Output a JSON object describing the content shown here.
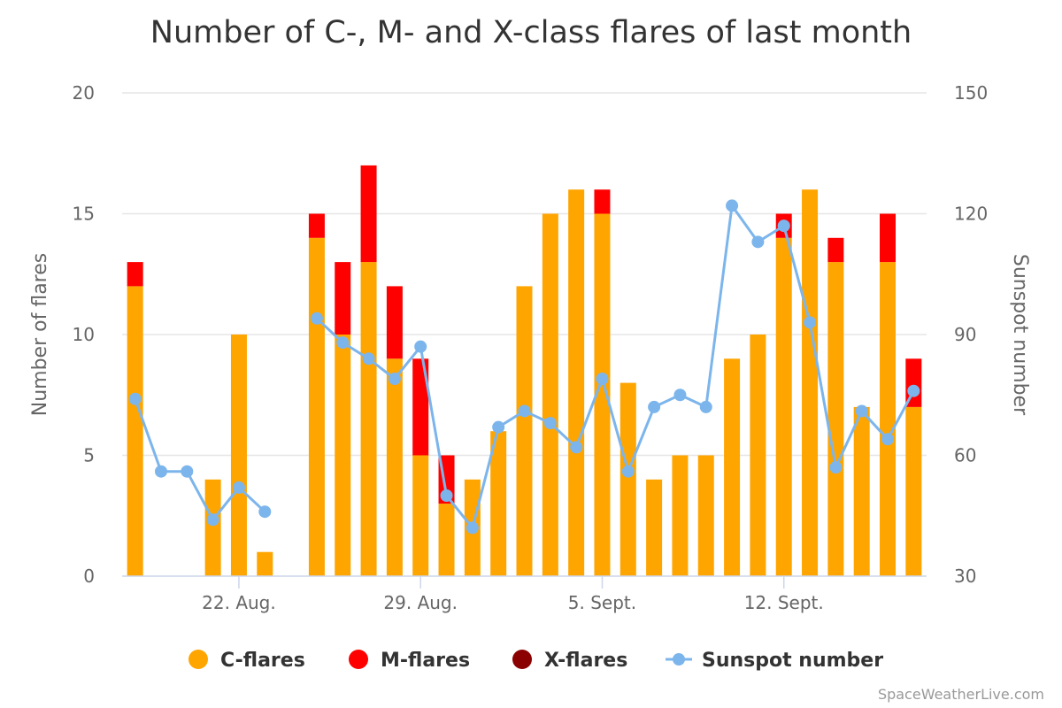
{
  "chart_data": {
    "type": "bar",
    "title": "Number of C-, M- and X-class flares of last month",
    "ylabel_left": "Number of flares",
    "ylabel_right": "Sunspot number",
    "ylim_left": [
      0,
      20
    ],
    "ylim_right": [
      30,
      150
    ],
    "yticks_left": [
      "0",
      "5",
      "10",
      "15",
      "20"
    ],
    "yticks_right": [
      "30",
      "60",
      "90",
      "120",
      "150"
    ],
    "x": [
      "2019-08-18",
      "2019-08-19",
      "2019-08-20",
      "2019-08-21",
      "2019-08-22",
      "2019-08-23",
      "2019-08-24",
      "2019-08-25",
      "2019-08-26",
      "2019-08-27",
      "2019-08-28",
      "2019-08-29",
      "2019-08-30",
      "2019-08-31",
      "2019-09-01",
      "2019-09-02",
      "2019-09-03",
      "2019-09-04",
      "2019-09-05",
      "2019-09-06",
      "2019-09-07",
      "2019-09-08",
      "2019-09-09",
      "2019-09-10",
      "2019-09-11",
      "2019-09-12",
      "2019-09-13",
      "2019-09-14",
      "2019-09-15",
      "2019-09-16",
      "2019-09-17"
    ],
    "x_tick_labels": [
      {
        "date": "2019-08-22",
        "label": "22. Aug."
      },
      {
        "date": "2019-08-29",
        "label": "29. Aug."
      },
      {
        "date": "2019-09-05",
        "label": "5. Sept."
      },
      {
        "date": "2019-09-12",
        "label": "12. Sept."
      }
    ],
    "series": [
      {
        "name": "C-flares",
        "type": "bar",
        "axis": "left",
        "color": "#FFA500",
        "values": [
          12,
          0,
          0,
          4,
          10,
          1,
          0,
          14,
          10,
          13,
          9,
          5,
          3,
          4,
          6,
          12,
          15,
          16,
          15,
          8,
          4,
          5,
          5,
          9,
          10,
          14,
          16,
          13,
          7,
          13,
          7
        ]
      },
      {
        "name": "M-flares",
        "type": "bar",
        "axis": "left",
        "color": "#FF0000",
        "values": [
          1,
          0,
          0,
          0,
          0,
          0,
          0,
          1,
          3,
          4,
          3,
          4,
          2,
          0,
          0,
          0,
          0,
          0,
          1,
          0,
          0,
          0,
          0,
          0,
          0,
          1,
          0,
          1,
          0,
          2,
          2
        ]
      },
      {
        "name": "X-flares",
        "type": "bar",
        "axis": "left",
        "color": "#8B0000",
        "values": [
          0,
          0,
          0,
          0,
          0,
          0,
          0,
          0,
          0,
          0,
          0,
          0,
          0,
          0,
          0,
          0,
          0,
          0,
          0,
          0,
          0,
          0,
          0,
          0,
          0,
          0,
          0,
          0,
          0,
          0,
          0
        ]
      },
      {
        "name": "Sunspot number",
        "type": "line",
        "axis": "right",
        "color": "#7CB5EC",
        "values": [
          74,
          56,
          56,
          44,
          52,
          46,
          null,
          94,
          88,
          84,
          79,
          87,
          50,
          42,
          67,
          71,
          68,
          62,
          79,
          56,
          72,
          75,
          72,
          122,
          113,
          117,
          93,
          57,
          71,
          64,
          76
        ]
      }
    ],
    "legend": "bottom-center",
    "grid": true
  },
  "credit": "SpaceWeatherLive.com"
}
